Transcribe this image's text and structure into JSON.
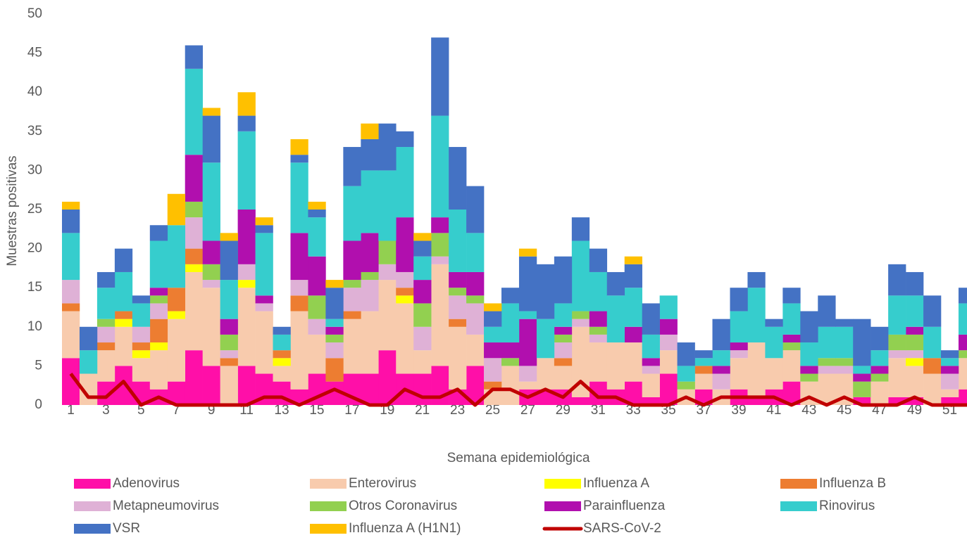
{
  "chart_data": {
    "type": "bar",
    "stacked": true,
    "x_label": "Semana epidemiológica",
    "y_label": "Muestras positivas",
    "categories": [
      "1",
      null,
      "3",
      null,
      "5",
      null,
      "7",
      null,
      "9",
      null,
      "11",
      null,
      "13",
      null,
      "15",
      null,
      "17",
      null,
      "19",
      null,
      "21",
      null,
      "23",
      null,
      "25",
      null,
      "27",
      null,
      "29",
      null,
      "31",
      null,
      "33",
      null,
      "35",
      null,
      "37",
      null,
      "39",
      null,
      "41",
      null,
      "43",
      null,
      "45",
      null,
      "47",
      null,
      "49",
      null,
      "51",
      null
    ],
    "ylim": [
      0,
      50
    ],
    "yticks": [
      0,
      5,
      10,
      15,
      20,
      25,
      30,
      35,
      40,
      45,
      50
    ],
    "grid": false,
    "series": [
      {
        "name": "Adenovirus",
        "color": "#ff0fa8",
        "values": [
          6,
          0,
          3,
          5,
          3,
          2,
          3,
          7,
          5,
          0,
          5,
          4,
          3,
          2,
          4,
          3,
          4,
          4,
          7,
          4,
          4,
          5,
          2,
          5,
          0,
          0,
          2,
          2,
          2,
          1,
          3,
          2,
          3,
          1,
          4,
          0,
          2,
          0,
          2,
          1,
          2,
          3,
          0,
          0,
          0,
          1,
          0,
          1,
          1,
          0,
          1,
          2
        ]
      },
      {
        "name": "Enterovirus",
        "color": "#f8cbad",
        "values": [
          6,
          4,
          4,
          5,
          3,
          5,
          8,
          10,
          10,
          5,
          10,
          8,
          2,
          10,
          5,
          0,
          7,
          8,
          9,
          9,
          3,
          13,
          8,
          4,
          2,
          5,
          1,
          4,
          3,
          9,
          5,
          6,
          5,
          3,
          3,
          2,
          2,
          2,
          4,
          7,
          4,
          4,
          3,
          4,
          4,
          0,
          3,
          5,
          4,
          4,
          1,
          4
        ]
      },
      {
        "name": "Influenza A",
        "color": "#ffff00",
        "values": [
          0,
          0,
          0,
          1,
          1,
          1,
          1,
          1,
          0,
          0,
          1,
          0,
          1,
          0,
          0,
          0,
          0,
          0,
          0,
          1,
          0,
          0,
          0,
          0,
          0,
          0,
          0,
          0,
          0,
          0,
          0,
          0,
          0,
          0,
          0,
          0,
          0,
          0,
          0,
          0,
          0,
          0,
          0,
          0,
          0,
          0,
          0,
          0,
          1,
          0,
          0,
          0
        ]
      },
      {
        "name": "Influenza B",
        "color": "#ed7d31",
        "values": [
          1,
          0,
          1,
          1,
          1,
          3,
          3,
          2,
          0,
          1,
          0,
          0,
          1,
          2,
          0,
          3,
          1,
          0,
          0,
          1,
          0,
          0,
          1,
          0,
          1,
          0,
          0,
          0,
          1,
          0,
          0,
          0,
          0,
          0,
          0,
          0,
          1,
          0,
          0,
          0,
          0,
          0,
          0,
          0,
          0,
          0,
          0,
          0,
          0,
          2,
          0,
          0
        ]
      },
      {
        "name": "Metapneumovirus",
        "color": "#dfb1d6",
        "values": [
          3,
          0,
          2,
          0,
          2,
          2,
          0,
          4,
          1,
          1,
          2,
          1,
          0,
          2,
          2,
          2,
          3,
          4,
          2,
          2,
          3,
          1,
          3,
          4,
          3,
          0,
          2,
          0,
          2,
          1,
          1,
          0,
          0,
          1,
          2,
          0,
          0,
          2,
          1,
          0,
          0,
          0,
          0,
          1,
          1,
          0,
          0,
          1,
          1,
          0,
          2,
          0
        ]
      },
      {
        "name": "Otros Coronavirus",
        "color": "#92d050",
        "values": [
          0,
          0,
          1,
          0,
          0,
          1,
          0,
          2,
          2,
          2,
          0,
          0,
          0,
          0,
          3,
          1,
          1,
          1,
          3,
          0,
          3,
          3,
          1,
          1,
          0,
          1,
          0,
          0,
          1,
          1,
          1,
          0,
          0,
          0,
          0,
          1,
          0,
          0,
          0,
          0,
          0,
          1,
          1,
          1,
          1,
          2,
          1,
          2,
          2,
          0,
          0,
          1
        ]
      },
      {
        "name": "Parainfluenza",
        "color": "#b10fae",
        "values": [
          0,
          0,
          0,
          0,
          0,
          1,
          0,
          6,
          3,
          2,
          7,
          1,
          0,
          6,
          5,
          1,
          5,
          5,
          0,
          7,
          3,
          2,
          2,
          3,
          2,
          2,
          6,
          0,
          1,
          0,
          2,
          0,
          2,
          1,
          2,
          0,
          0,
          1,
          1,
          0,
          0,
          1,
          1,
          0,
          0,
          1,
          1,
          0,
          1,
          0,
          1,
          2
        ]
      },
      {
        "name": "Rinovirus",
        "color": "#36cdcd",
        "values": [
          6,
          3,
          4,
          5,
          3,
          6,
          8,
          11,
          10,
          5,
          10,
          8,
          2,
          9,
          5,
          1,
          7,
          8,
          9,
          9,
          3,
          13,
          8,
          5,
          2,
          5,
          1,
          5,
          3,
          9,
          5,
          6,
          5,
          3,
          3,
          2,
          1,
          2,
          4,
          7,
          4,
          4,
          3,
          4,
          4,
          1,
          2,
          5,
          4,
          4,
          1,
          4
        ]
      },
      {
        "name": "VSR",
        "color": "#4472c4",
        "values": [
          3,
          3,
          2,
          3,
          1,
          2,
          0,
          3,
          6,
          5,
          2,
          1,
          1,
          1,
          1,
          4,
          5,
          4,
          6,
          2,
          2,
          10,
          8,
          6,
          2,
          2,
          7,
          7,
          6,
          3,
          3,
          3,
          3,
          4,
          0,
          3,
          1,
          4,
          3,
          2,
          1,
          2,
          4,
          4,
          1,
          6,
          3,
          4,
          3,
          4,
          1,
          2
        ]
      },
      {
        "name": "Influenza A (H1N1)",
        "color": "#ffc000",
        "values": [
          1,
          0,
          0,
          0,
          0,
          0,
          4,
          0,
          1,
          1,
          3,
          1,
          0,
          2,
          1,
          1,
          0,
          2,
          0,
          0,
          1,
          0,
          0,
          0,
          1,
          0,
          1,
          0,
          0,
          0,
          0,
          0,
          1,
          0,
          0,
          0,
          0,
          0,
          0,
          0,
          0,
          0,
          0,
          0,
          0,
          0,
          0,
          0,
          0,
          0,
          0,
          0
        ]
      },
      {
        "name": "SARS-CoV-2",
        "color": "#c00000",
        "type": "line",
        "values": [
          4,
          1,
          1,
          3,
          0,
          1,
          0,
          0,
          0,
          0,
          0,
          1,
          1,
          0,
          1,
          2,
          1,
          0,
          0,
          2,
          1,
          1,
          2,
          0,
          2,
          2,
          1,
          2,
          1,
          3,
          1,
          1,
          0,
          0,
          0,
          1,
          0,
          1,
          1,
          1,
          1,
          0,
          1,
          0,
          1,
          0,
          0,
          0,
          1,
          0,
          0,
          0
        ]
      }
    ]
  }
}
